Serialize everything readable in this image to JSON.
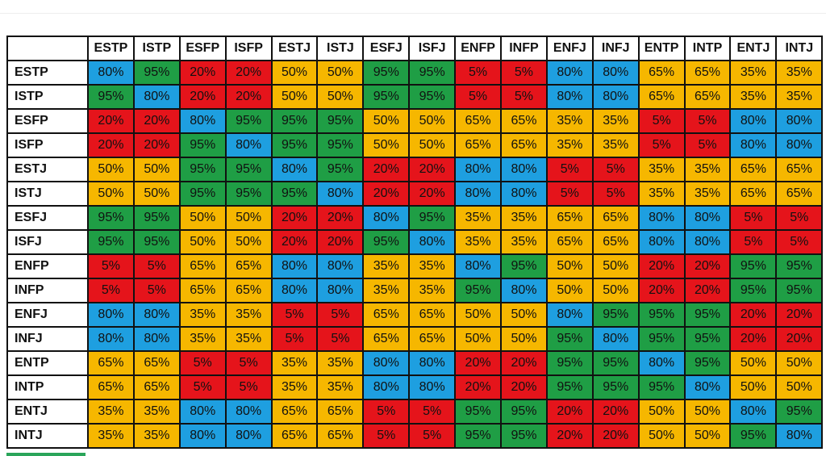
{
  "table": {
    "corner": "",
    "columns": [
      "ESTP",
      "ISTP",
      "ESFP",
      "ISFP",
      "ESTJ",
      "ISTJ",
      "ESFJ",
      "ISFJ",
      "ENFP",
      "INFP",
      "ENFJ",
      "INFJ",
      "ENTP",
      "INTP",
      "ENTJ",
      "INTJ"
    ],
    "row_labels": [
      "ESTP",
      "ISTP",
      "ESFP",
      "ISFP",
      "ESTJ",
      "ISTJ",
      "ESFJ",
      "ISFJ",
      "ENFP",
      "INFP",
      "ENFJ",
      "INFJ",
      "ENTP",
      "INTP",
      "ENTJ",
      "INTJ"
    ],
    "cell_colors": {
      "95%": "#1f9e45",
      "80%": "#1e9fe0",
      "65%": "#f6b700",
      "50%": "#f6b700",
      "35%": "#f6b700",
      "20%": "#e5141b",
      "5%": "#e5141b"
    },
    "rows": [
      [
        "80%",
        "95%",
        "20%",
        "20%",
        "50%",
        "50%",
        "95%",
        "95%",
        "5%",
        "5%",
        "80%",
        "80%",
        "65%",
        "65%",
        "35%",
        "35%"
      ],
      [
        "95%",
        "80%",
        "20%",
        "20%",
        "50%",
        "50%",
        "95%",
        "95%",
        "5%",
        "5%",
        "80%",
        "80%",
        "65%",
        "65%",
        "35%",
        "35%"
      ],
      [
        "20%",
        "20%",
        "80%",
        "95%",
        "95%",
        "95%",
        "50%",
        "50%",
        "65%",
        "65%",
        "35%",
        "35%",
        "5%",
        "5%",
        "80%",
        "80%"
      ],
      [
        "20%",
        "20%",
        "95%",
        "80%",
        "95%",
        "95%",
        "50%",
        "50%",
        "65%",
        "65%",
        "35%",
        "35%",
        "5%",
        "5%",
        "80%",
        "80%"
      ],
      [
        "50%",
        "50%",
        "95%",
        "95%",
        "80%",
        "95%",
        "20%",
        "20%",
        "80%",
        "80%",
        "5%",
        "5%",
        "35%",
        "35%",
        "65%",
        "65%"
      ],
      [
        "50%",
        "50%",
        "95%",
        "95%",
        "95%",
        "80%",
        "20%",
        "20%",
        "80%",
        "80%",
        "5%",
        "5%",
        "35%",
        "35%",
        "65%",
        "65%"
      ],
      [
        "95%",
        "95%",
        "50%",
        "50%",
        "20%",
        "20%",
        "80%",
        "95%",
        "35%",
        "35%",
        "65%",
        "65%",
        "80%",
        "80%",
        "5%",
        "5%"
      ],
      [
        "95%",
        "95%",
        "50%",
        "50%",
        "20%",
        "20%",
        "95%",
        "80%",
        "35%",
        "35%",
        "65%",
        "65%",
        "80%",
        "80%",
        "5%",
        "5%"
      ],
      [
        "5%",
        "5%",
        "65%",
        "65%",
        "80%",
        "80%",
        "35%",
        "35%",
        "80%",
        "95%",
        "50%",
        "50%",
        "20%",
        "20%",
        "95%",
        "95%"
      ],
      [
        "5%",
        "5%",
        "65%",
        "65%",
        "80%",
        "80%",
        "35%",
        "35%",
        "95%",
        "80%",
        "50%",
        "50%",
        "20%",
        "20%",
        "95%",
        "95%"
      ],
      [
        "80%",
        "80%",
        "35%",
        "35%",
        "5%",
        "5%",
        "65%",
        "65%",
        "50%",
        "50%",
        "80%",
        "95%",
        "95%",
        "95%",
        "20%",
        "20%"
      ],
      [
        "80%",
        "80%",
        "35%",
        "35%",
        "5%",
        "5%",
        "65%",
        "65%",
        "50%",
        "50%",
        "95%",
        "80%",
        "95%",
        "95%",
        "20%",
        "20%"
      ],
      [
        "65%",
        "65%",
        "5%",
        "5%",
        "35%",
        "35%",
        "80%",
        "80%",
        "20%",
        "20%",
        "95%",
        "95%",
        "80%",
        "95%",
        "50%",
        "50%"
      ],
      [
        "65%",
        "65%",
        "5%",
        "5%",
        "35%",
        "35%",
        "80%",
        "80%",
        "20%",
        "20%",
        "95%",
        "95%",
        "95%",
        "80%",
        "50%",
        "50%"
      ],
      [
        "35%",
        "35%",
        "80%",
        "80%",
        "65%",
        "65%",
        "5%",
        "5%",
        "95%",
        "95%",
        "20%",
        "20%",
        "50%",
        "50%",
        "80%",
        "95%"
      ],
      [
        "35%",
        "35%",
        "80%",
        "80%",
        "65%",
        "65%",
        "5%",
        "5%",
        "95%",
        "95%",
        "20%",
        "20%",
        "50%",
        "50%",
        "95%",
        "80%"
      ]
    ]
  }
}
